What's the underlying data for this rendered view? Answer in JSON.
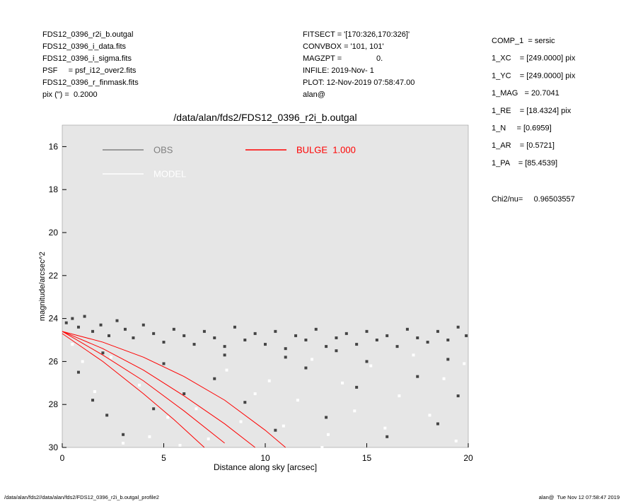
{
  "header": {
    "left": [
      "FDS12_0396_r2i_b.outgal",
      "FDS12_0396_i_data.fits",
      "FDS12_0396_i_sigma.fits",
      "PSF     = psf_i12_over2.fits",
      "FDS12_0396_r_finmask.fits",
      "pix (\") =  0.2000"
    ],
    "middle": [
      "FITSECT = '[170:326,170:326]'",
      "CONVBOX = '101, 101'",
      "MAGZPT =                0.",
      "INFILE: 2019-Nov- 1",
      "PLOT: 12-Nov-2019 07:58:47.00",
      "alan@"
    ],
    "right": [
      "COMP_1  = sersic",
      "1_XC    = [249.0000] pix",
      "1_YC    = [249.0000] pix",
      "1_MAG   = 20.7041",
      "1_RE    = [18.4324] pix",
      "1_N     = [0.6959]",
      "1_AR    = [0.5721]",
      "1_PA    = [85.4539]"
    ],
    "chi2": "Chi2/nu=     0.96503557"
  },
  "footer": {
    "left": "/data/alan/fds2//data/alan/fds2/FDS12_0396_r2i_b.outgal_profile2",
    "right": "alan@  Tue Nov 12 07:58:47 2019"
  },
  "chart_data": {
    "type": "scatter",
    "title": "/data/alan/fds2/FDS12_0396_r2i_b.outgal",
    "x_label": "Distance along sky [arcsec]",
    "y_label": "magnitude/arcsec^2",
    "xlim": [
      0,
      20
    ],
    "ylim": [
      15,
      30
    ],
    "y_inverted": true,
    "xticks": [
      0,
      5,
      10,
      15,
      20
    ],
    "yticks": [
      16,
      18,
      20,
      22,
      24,
      26,
      28,
      30
    ],
    "background": "#e6e6e6",
    "series": [
      {
        "name": "OBS",
        "color": "#444444",
        "legend_color": "#808080",
        "x": [
          0.2,
          0.5,
          0.8,
          1.1,
          1.5,
          1.9,
          2.3,
          2.7,
          3.1,
          3.5,
          4,
          4.5,
          5,
          5.5,
          6,
          6.5,
          7,
          7.5,
          8,
          8.5,
          9,
          9.5,
          10,
          10.5,
          11,
          11.5,
          12,
          12.5,
          13,
          13.5,
          14,
          14.5,
          15,
          15.5,
          16,
          16.5,
          17,
          17.5,
          18,
          18.5,
          19,
          19.5,
          19.9,
          0.8,
          1.5,
          2.2,
          3,
          4.5,
          6,
          7.5,
          9,
          10.5,
          12,
          13,
          14.5,
          16,
          17.5,
          18.5,
          19.5,
          11,
          5,
          15,
          19,
          2,
          8,
          13.5
        ],
        "y": [
          24.2,
          24.0,
          24.4,
          23.9,
          24.6,
          24.3,
          24.8,
          24.1,
          24.5,
          24.9,
          24.3,
          24.7,
          25.1,
          24.5,
          24.8,
          25.2,
          24.6,
          24.9,
          25.3,
          24.4,
          25.0,
          24.7,
          25.2,
          24.6,
          25.4,
          24.8,
          25.0,
          24.5,
          25.3,
          24.9,
          24.7,
          25.2,
          24.6,
          25.0,
          24.8,
          25.3,
          24.5,
          24.9,
          25.1,
          24.6,
          25.0,
          24.4,
          24.8,
          26.5,
          27.8,
          28.5,
          29.4,
          28.2,
          27.5,
          26.8,
          27.9,
          29.2,
          26.3,
          28.6,
          27.2,
          29.5,
          26.7,
          28.9,
          27.6,
          25.8,
          26.1,
          26.0,
          25.9,
          25.6,
          25.7,
          25.5
        ]
      },
      {
        "name": "MODEL",
        "color": "#ffffff",
        "legend_color": "#ffffff",
        "x": [
          0.5,
          1,
          1.6,
          2.4,
          3,
          3.8,
          4.3,
          5.2,
          5.8,
          6.6,
          7.2,
          8.1,
          8.8,
          9.5,
          10.2,
          10.9,
          11.6,
          12.3,
          13.1,
          13.8,
          14.4,
          15.2,
          15.9,
          16.6,
          17.3,
          18.1,
          18.8,
          19.4,
          19.8,
          12.8
        ],
        "y": [
          25.2,
          26.0,
          27.4,
          25.8,
          29.8,
          27.1,
          29.5,
          28.6,
          29.9,
          28.2,
          29.6,
          26.4,
          28.8,
          27.5,
          26.9,
          29.0,
          27.8,
          25.9,
          29.4,
          27.0,
          28.3,
          26.2,
          29.1,
          27.6,
          25.7,
          28.5,
          26.8,
          29.7,
          26.1,
          30.0
        ]
      },
      {
        "name": "BULGE  1.000",
        "color": "#ff0000",
        "legend_color": "#ff0000",
        "profiles": [
          {
            "x": [
              0,
              2,
              4,
              6,
              8,
              10,
              11
            ],
            "y": [
              24.6,
              25.1,
              25.8,
              26.7,
              27.8,
              29.2,
              30
            ]
          },
          {
            "x": [
              0,
              2,
              4,
              6,
              8,
              9.5
            ],
            "y": [
              24.6,
              25.4,
              26.4,
              27.6,
              28.9,
              30
            ]
          },
          {
            "x": [
              0,
              2,
              4,
              6,
              8
            ],
            "y": [
              24.6,
              25.7,
              26.9,
              28.3,
              29.8
            ]
          },
          {
            "x": [
              0,
              2,
              4,
              5.5,
              7
            ],
            "y": [
              24.7,
              26.0,
              27.5,
              28.7,
              30
            ]
          }
        ]
      }
    ]
  }
}
